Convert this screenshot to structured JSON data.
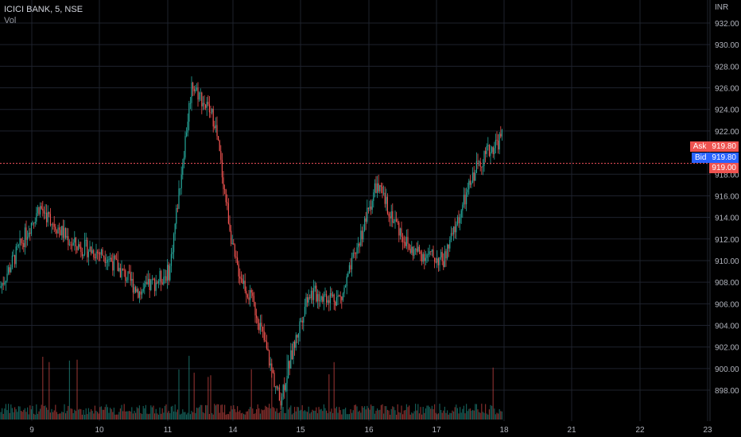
{
  "header": {
    "symbol": "ICICI BANK, 5, NSE",
    "volume_label": "Vol"
  },
  "currency": "INR",
  "price_axis": {
    "ticks": [
      "932.00",
      "930.00",
      "928.00",
      "926.00",
      "924.00",
      "922.00",
      "918.00",
      "916.00",
      "914.00",
      "912.00",
      "910.00",
      "908.00",
      "906.00",
      "904.00",
      "902.00",
      "900.00",
      "898.00"
    ]
  },
  "time_axis": {
    "ticks": [
      "9",
      "10",
      "11",
      "14",
      "15",
      "16",
      "17",
      "18",
      "21",
      "22",
      "23"
    ]
  },
  "quote": {
    "ask_label": "Ask",
    "ask": "919.80",
    "bid_label": "Bid",
    "bid": "919.80",
    "last": "919.00"
  },
  "colors": {
    "up": "#26a69a",
    "down": "#ef5350",
    "bid": "#2962ff",
    "ask": "#ef5350",
    "grid": "#1e222d",
    "last_line": "#f7525f"
  },
  "chart_data": {
    "type": "candlestick",
    "title": "ICICI BANK, 5, NSE",
    "ylabel": "INR",
    "ylim": [
      896.8,
      933.2
    ],
    "x": [
      "9",
      "10",
      "11",
      "14",
      "15",
      "16",
      "17",
      "18",
      "21",
      "22",
      "23"
    ],
    "approx_close_path": [
      {
        "day": "8",
        "price": 907.5
      },
      {
        "day": "9",
        "price": 915.0
      },
      {
        "day": "9",
        "price": 911.5
      },
      {
        "day": "10",
        "price": 910.5
      },
      {
        "day": "10",
        "price": 907.0
      },
      {
        "day": "11",
        "price": 909.0
      },
      {
        "day": "11",
        "price": 926.5
      },
      {
        "day": "11",
        "price": 923.0
      },
      {
        "day": "14",
        "price": 910.0
      },
      {
        "day": "14",
        "price": 905.0
      },
      {
        "day": "14",
        "price": 897.0
      },
      {
        "day": "15",
        "price": 907.0
      },
      {
        "day": "15",
        "price": 906.5
      },
      {
        "day": "16",
        "price": 917.0
      },
      {
        "day": "16",
        "price": 911.0
      },
      {
        "day": "17",
        "price": 910.0
      },
      {
        "day": "17",
        "price": 919.0
      },
      {
        "day": "18",
        "price": 921.5
      },
      {
        "day": "18",
        "price": 919.0
      }
    ],
    "last_price": 919.0,
    "ask": 919.8,
    "bid": 919.8
  }
}
